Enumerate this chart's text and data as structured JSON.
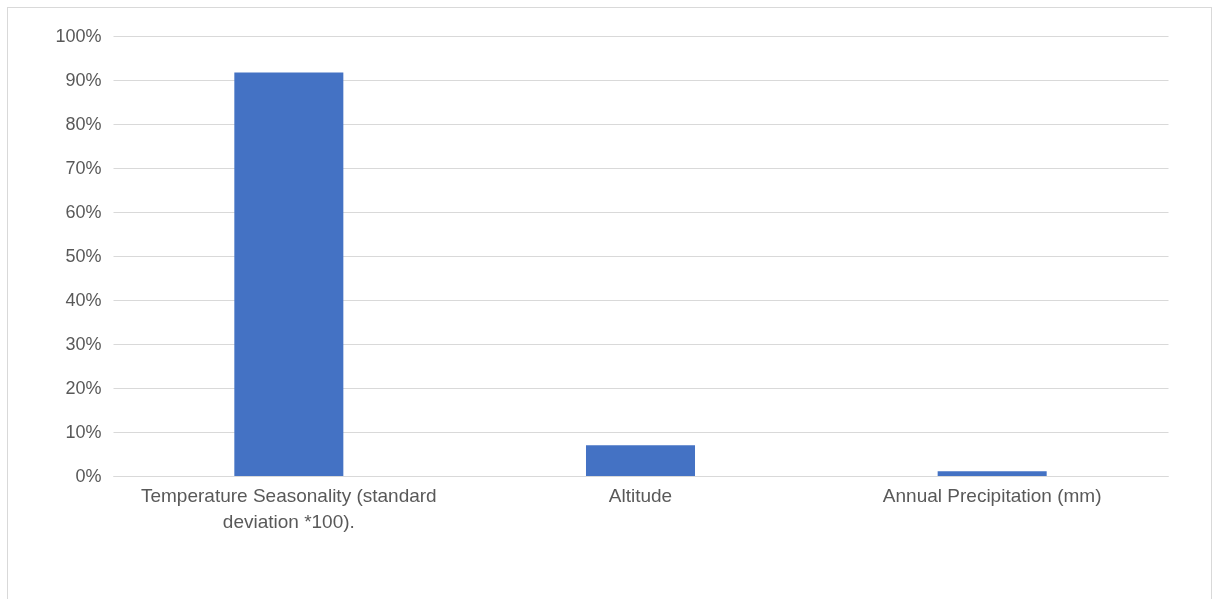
{
  "chart_data": {
    "type": "bar",
    "categories": [
      "Temperature Seasonality (standard deviation *100).",
      "Altitude",
      "Annual Precipitation (mm)"
    ],
    "values": [
      91.7,
      7.0,
      1.1
    ],
    "color": "#4472c4",
    "ylim": [
      0,
      100
    ],
    "yticks": [
      {
        "value": 0,
        "label": "0%"
      },
      {
        "value": 10,
        "label": "10%"
      },
      {
        "value": 20,
        "label": "20%"
      },
      {
        "value": 30,
        "label": "30%"
      },
      {
        "value": 40,
        "label": "40%"
      },
      {
        "value": 50,
        "label": "50%"
      },
      {
        "value": 60,
        "label": "60%"
      },
      {
        "value": 70,
        "label": "70%"
      },
      {
        "value": 80,
        "label": "80%"
      },
      {
        "value": 90,
        "label": "90%"
      },
      {
        "value": 100,
        "label": "100%"
      }
    ],
    "grid": "y"
  }
}
